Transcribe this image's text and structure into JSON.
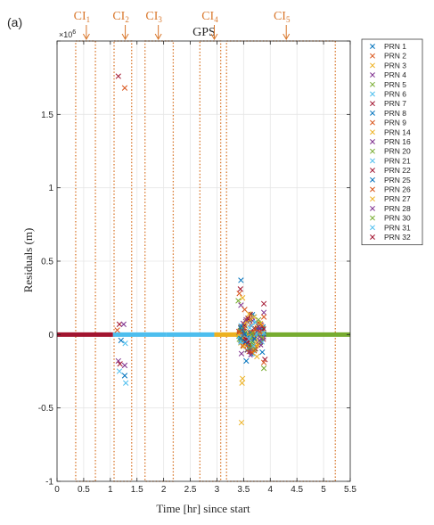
{
  "chart_data": {
    "type": "scatter",
    "panel_label": "(a)",
    "title": "GPS",
    "xlabel": "Time [hr] since start",
    "ylabel": "Residuals (m)",
    "y_exponent": "×10^6",
    "y_exponent_base": "×10",
    "y_exponent_power": "6",
    "xlim": [
      0,
      5.5
    ],
    "ylim": [
      -1,
      2
    ],
    "xticks": [
      0,
      0.5,
      1,
      1.5,
      2,
      2.5,
      3,
      3.5,
      4,
      4.5,
      5,
      5.5
    ],
    "xtick_labels": [
      "0",
      "0.5",
      "1",
      "1.5",
      "2",
      "2.5",
      "3",
      "3.5",
      "4",
      "4.5",
      "5",
      "5.5"
    ],
    "yticks": [
      -1,
      -0.5,
      0,
      0.5,
      1,
      1.5,
      2
    ],
    "ytick_labels": [
      "-1",
      "-0.5",
      "0",
      "0.5",
      "1",
      "1.5",
      ""
    ],
    "grid": true,
    "legend_position": "outside-right",
    "series": [
      {
        "name": "PRN 1",
        "color": "#0072bd"
      },
      {
        "name": "PRN 2",
        "color": "#d95319"
      },
      {
        "name": "PRN 3",
        "color": "#edb120"
      },
      {
        "name": "PRN 4",
        "color": "#7e2f8e"
      },
      {
        "name": "PRN 5",
        "color": "#77ac30"
      },
      {
        "name": "PRN 6",
        "color": "#4dbeee"
      },
      {
        "name": "PRN 7",
        "color": "#a2142f"
      },
      {
        "name": "PRN 8",
        "color": "#0072bd"
      },
      {
        "name": "PRN 9",
        "color": "#d95319"
      },
      {
        "name": "PRN 14",
        "color": "#edb120"
      },
      {
        "name": "PRN 16",
        "color": "#7e2f8e"
      },
      {
        "name": "PRN 20",
        "color": "#77ac30"
      },
      {
        "name": "PRN 21",
        "color": "#4dbeee"
      },
      {
        "name": "PRN 22",
        "color": "#a2142f"
      },
      {
        "name": "PRN 25",
        "color": "#0072bd"
      },
      {
        "name": "PRN 26",
        "color": "#d95319"
      },
      {
        "name": "PRN 27",
        "color": "#edb120"
      },
      {
        "name": "PRN 28",
        "color": "#7e2f8e"
      },
      {
        "name": "PRN 30",
        "color": "#77ac30"
      },
      {
        "name": "PRN 31",
        "color": "#4dbeee"
      },
      {
        "name": "PRN 32",
        "color": "#a2142f"
      }
    ],
    "baseline_segments": [
      {
        "x0": 0.0,
        "x1": 1.05,
        "y": 0,
        "color": "#a2142f"
      },
      {
        "x0": 1.05,
        "x1": 2.05,
        "y": 0,
        "color": "#4dbeee"
      },
      {
        "x0": 2.05,
        "x1": 2.95,
        "y": 0,
        "color": "#4dbeee"
      },
      {
        "x0": 2.95,
        "x1": 3.45,
        "y": 0,
        "color": "#edb120"
      },
      {
        "x0": 3.45,
        "x1": 3.9,
        "y": 0,
        "color": "#77ac30"
      },
      {
        "x0": 3.9,
        "x1": 5.55,
        "y": 0,
        "color": "#77ac30"
      }
    ],
    "outliers": [
      {
        "x": 1.15,
        "y": 1.76,
        "color": "#a2142f"
      },
      {
        "x": 1.27,
        "y": 1.68,
        "color": "#d95319"
      },
      {
        "x": 1.17,
        "y": 0.07,
        "color": "#a2142f"
      },
      {
        "x": 1.25,
        "y": 0.07,
        "color": "#7e2f8e"
      },
      {
        "x": 1.13,
        "y": 0.03,
        "color": "#d95319"
      },
      {
        "x": 1.2,
        "y": -0.04,
        "color": "#0072bd"
      },
      {
        "x": 1.28,
        "y": -0.06,
        "color": "#4dbeee"
      },
      {
        "x": 1.15,
        "y": -0.18,
        "color": "#7e2f8e"
      },
      {
        "x": 1.18,
        "y": -0.2,
        "color": "#a2142f"
      },
      {
        "x": 1.27,
        "y": -0.21,
        "color": "#7e2f8e"
      },
      {
        "x": 1.17,
        "y": -0.25,
        "color": "#4dbeee"
      },
      {
        "x": 1.27,
        "y": -0.28,
        "color": "#0072bd"
      },
      {
        "x": 1.29,
        "y": -0.33,
        "color": "#4dbeee"
      },
      {
        "x": 3.45,
        "y": 0.37,
        "color": "#0072bd"
      },
      {
        "x": 3.44,
        "y": 0.31,
        "color": "#a2142f"
      },
      {
        "x": 3.42,
        "y": 0.28,
        "color": "#d95319"
      },
      {
        "x": 3.48,
        "y": 0.25,
        "color": "#edb120"
      },
      {
        "x": 3.4,
        "y": 0.23,
        "color": "#77ac30"
      },
      {
        "x": 3.45,
        "y": 0.2,
        "color": "#7e2f8e"
      },
      {
        "x": 3.52,
        "y": 0.17,
        "color": "#d95319"
      },
      {
        "x": 3.6,
        "y": 0.14,
        "color": "#edb120"
      },
      {
        "x": 3.7,
        "y": 0.12,
        "color": "#edb120"
      },
      {
        "x": 3.78,
        "y": 0.1,
        "color": "#77ac30"
      },
      {
        "x": 3.55,
        "y": 0.1,
        "color": "#7e2f8e"
      },
      {
        "x": 3.88,
        "y": 0.21,
        "color": "#a2142f"
      },
      {
        "x": 3.88,
        "y": 0.15,
        "color": "#7e2f8e"
      },
      {
        "x": 3.88,
        "y": 0.12,
        "color": "#d95319"
      },
      {
        "x": 3.65,
        "y": 0.06,
        "color": "#4dbeee"
      },
      {
        "x": 3.72,
        "y": 0.04,
        "color": "#d95319"
      },
      {
        "x": 3.8,
        "y": -0.04,
        "color": "#7e2f8e"
      },
      {
        "x": 3.58,
        "y": -0.05,
        "color": "#a2142f"
      },
      {
        "x": 3.5,
        "y": -0.08,
        "color": "#edb120"
      },
      {
        "x": 3.62,
        "y": -0.09,
        "color": "#77ac30"
      },
      {
        "x": 3.7,
        "y": -0.11,
        "color": "#d95319"
      },
      {
        "x": 3.85,
        "y": -0.12,
        "color": "#0072bd"
      },
      {
        "x": 3.46,
        "y": -0.13,
        "color": "#7e2f8e"
      },
      {
        "x": 3.75,
        "y": -0.15,
        "color": "#edb120"
      },
      {
        "x": 3.9,
        "y": -0.17,
        "color": "#a2142f"
      },
      {
        "x": 3.88,
        "y": -0.19,
        "color": "#d95319"
      },
      {
        "x": 3.55,
        "y": -0.18,
        "color": "#0072bd"
      },
      {
        "x": 3.88,
        "y": -0.23,
        "color": "#77ac30"
      },
      {
        "x": 3.48,
        "y": -0.3,
        "color": "#edb120"
      },
      {
        "x": 3.47,
        "y": -0.33,
        "color": "#edb120"
      },
      {
        "x": 3.46,
        "y": -0.6,
        "color": "#edb120"
      },
      {
        "x": 3.6,
        "y": -0.03,
        "color": "#4dbeee"
      },
      {
        "x": 3.42,
        "y": 0.02,
        "color": "#d95319"
      }
    ],
    "clusters": [
      {
        "x0": 3.4,
        "x1": 3.9,
        "y0": -0.15,
        "y1": 0.15,
        "colors": [
          "#d95319",
          "#edb120",
          "#7e2f8e",
          "#77ac30",
          "#0072bd",
          "#4dbeee",
          "#a2142f"
        ]
      }
    ],
    "critical_intervals": [
      {
        "label": "CI",
        "sub": "1",
        "x0": 0.35,
        "x1": 0.72,
        "arrow_x": 0.55
      },
      {
        "label": "CI",
        "sub": "2",
        "x0": 1.07,
        "x1": 1.4,
        "arrow_x": 1.28
      },
      {
        "label": "CI",
        "sub": "3",
        "x0": 1.65,
        "x1": 2.18,
        "arrow_x": 1.9
      },
      {
        "label": "CI",
        "sub": "4",
        "x0": 2.68,
        "x1": 3.07,
        "arrow_x": 2.95
      },
      {
        "label": "CI",
        "sub": "5",
        "x0": 3.18,
        "x1": 5.22,
        "arrow_x": 4.3
      }
    ],
    "ci_color": "#d9782d"
  }
}
